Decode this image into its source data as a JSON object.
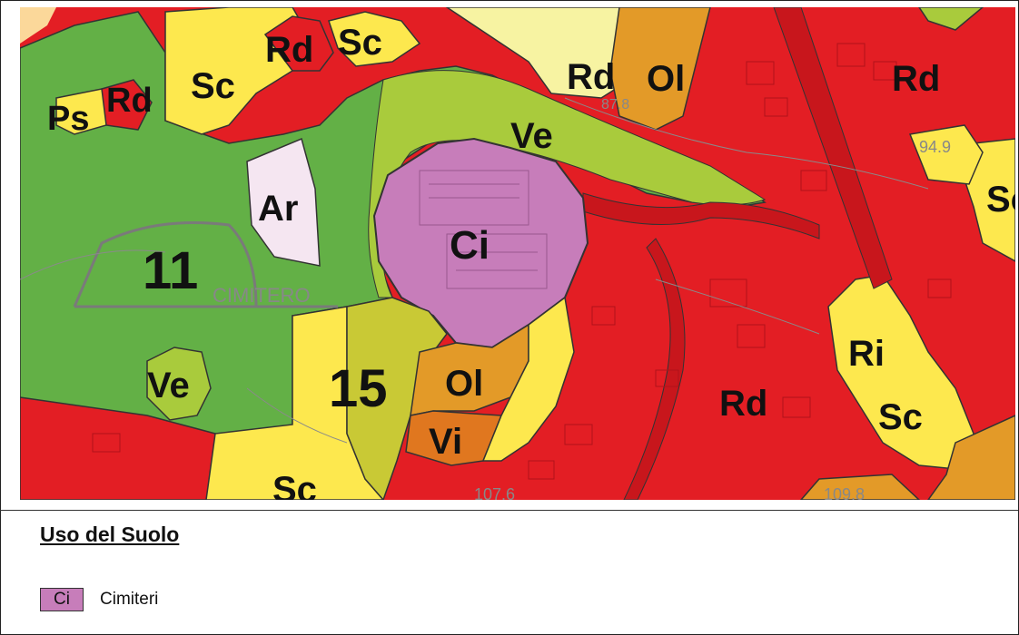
{
  "map": {
    "zone_labels": [
      "Rd",
      "Sc",
      "Rd",
      "Ol",
      "Rd",
      "Ps",
      "Rd",
      "Sc",
      "Ve",
      "Ar",
      "Ci",
      "Sc",
      "11",
      "Ri",
      "Ve",
      "15",
      "Ol",
      "Rd",
      "Sc",
      "Vi",
      "Sc"
    ],
    "small_labels": [
      "CIMITERO",
      "94.9",
      "87.8",
      "107.6",
      "109.8"
    ]
  },
  "legend": {
    "title": "Uso del Suolo",
    "items": [
      {
        "code": "Ci",
        "label": "Cimiteri",
        "color": "#c77dba"
      }
    ]
  },
  "colors": {
    "residential_red": "#e31e24",
    "light_green": "#a9cb3c",
    "green": "#63b046",
    "yellow": "#fde84e",
    "orange": "#e39a28",
    "dark_orange": "#e0771f",
    "cemetery_purple": "#c77dba",
    "pale_yellow": "#f7f3a2",
    "pale_pink": "#f5e6f1",
    "olive": "#c9c935"
  }
}
